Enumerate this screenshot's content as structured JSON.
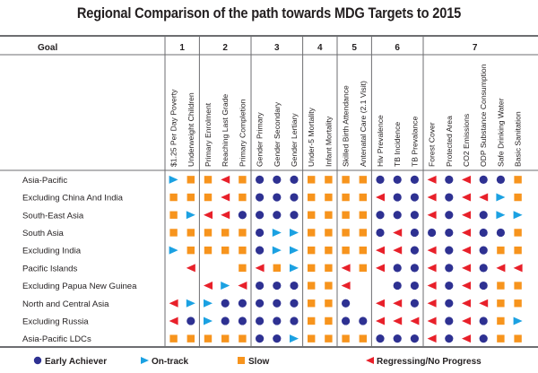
{
  "chart_data": {
    "type": "table",
    "title": "Regional Comparison of the path towards MDG Targets to 2015",
    "goal_header_label": "Goal",
    "colors": {
      "early": "#2e3192",
      "ontrack": "#1ba1e2",
      "slow": "#f7941d",
      "regressing": "#e8202a",
      "grid": "#6d6e71"
    },
    "goals": [
      {
        "label": "1",
        "indicators": [
          "$1.25 Per Day Poverty",
          "Underweight Children"
        ]
      },
      {
        "label": "2",
        "indicators": [
          "Primary Enrolment",
          "Reaching Last Grade",
          "Primary Completion"
        ]
      },
      {
        "label": "3",
        "indicators": [
          "Gender Primary",
          "Gender Secondary",
          "Gender Lertiary"
        ]
      },
      {
        "label": "4",
        "indicators": [
          "Under-5 Mortality",
          "Infant Mortality"
        ]
      },
      {
        "label": "5",
        "indicators": [
          "Skilled Birth Attendance",
          "Antenatal Care (2.1 Visit)"
        ]
      },
      {
        "label": "6",
        "indicators": [
          "Hiv Prevalence",
          "TB Incidence",
          "TB Prevalance"
        ]
      },
      {
        "label": "7",
        "indicators": [
          "Forest Cover",
          "Protected Area",
          "CO2 Emissions",
          "ODP Substance Consumption",
          "Safe Drinking Water",
          "Basic Sanitation"
        ]
      }
    ],
    "legend": [
      {
        "key": "E",
        "shape": "circle",
        "label": "Early Achiever",
        "color_key": "early"
      },
      {
        "key": "O",
        "shape": "triangle-right",
        "label": "On-track",
        "color_key": "ontrack"
      },
      {
        "key": "S",
        "shape": "square",
        "label": "Slow",
        "color_key": "slow"
      },
      {
        "key": "R",
        "shape": "triangle-left",
        "label": "Regressing/No Progress",
        "color_key": "regressing"
      }
    ],
    "rows": [
      {
        "region": "Asia-Pacific",
        "status": [
          "O",
          "S",
          "S",
          "R",
          "S",
          "E",
          "E",
          "E",
          "S",
          "S",
          "S",
          "S",
          "E",
          "E",
          "E",
          "R",
          "E",
          "R",
          "E",
          "E",
          "S"
        ]
      },
      {
        "region": "Excluding China And India",
        "status": [
          "S",
          "S",
          "S",
          "R",
          "S",
          "E",
          "E",
          "E",
          "S",
          "S",
          "S",
          "S",
          "R",
          "E",
          "E",
          "R",
          "E",
          "R",
          "R",
          "O",
          "S"
        ]
      },
      {
        "region": "South-East Asia",
        "status": [
          "S",
          "O",
          "R",
          "R",
          "E",
          "E",
          "E",
          "E",
          "S",
          "S",
          "S",
          "S",
          "E",
          "E",
          "E",
          "R",
          "E",
          "R",
          "E",
          "O",
          "O"
        ]
      },
      {
        "region": "South Asia",
        "status": [
          "S",
          "S",
          "S",
          "S",
          "S",
          "E",
          "O",
          "O",
          "S",
          "S",
          "S",
          "S",
          "E",
          "R",
          "E",
          "E",
          "E",
          "R",
          "E",
          "E",
          "S"
        ]
      },
      {
        "region": "Excluding India",
        "status": [
          "O",
          "S",
          "S",
          "S",
          "S",
          "E",
          "O",
          "O",
          "S",
          "S",
          "S",
          "S",
          "R",
          "R",
          "E",
          "R",
          "E",
          "R",
          "E",
          "S",
          "S"
        ]
      },
      {
        "region": "Pacific Islands",
        "status": [
          "",
          "R",
          "",
          "",
          "S",
          "R",
          "S",
          "O",
          "S",
          "S",
          "R",
          "S",
          "R",
          "E",
          "E",
          "R",
          "E",
          "R",
          "E",
          "R",
          "R"
        ]
      },
      {
        "region": "Excluding Papua New Guinea",
        "status": [
          "",
          "",
          "R",
          "O",
          "R",
          "E",
          "E",
          "E",
          "S",
          "S",
          "R",
          "",
          "",
          "E",
          "E",
          "R",
          "E",
          "R",
          "E",
          "S",
          "S"
        ]
      },
      {
        "region": "North and Central Asia",
        "status": [
          "R",
          "O",
          "O",
          "E",
          "E",
          "E",
          "E",
          "E",
          "S",
          "S",
          "E",
          "",
          "R",
          "R",
          "E",
          "R",
          "E",
          "R",
          "R",
          "S",
          "S"
        ]
      },
      {
        "region": "Excluding Russia",
        "status": [
          "R",
          "E",
          "O",
          "E",
          "E",
          "E",
          "E",
          "E",
          "S",
          "S",
          "E",
          "E",
          "R",
          "R",
          "R",
          "R",
          "E",
          "R",
          "E",
          "S",
          "O"
        ]
      },
      {
        "region": "Asia-Pacific LDCs",
        "status": [
          "S",
          "S",
          "S",
          "S",
          "S",
          "E",
          "E",
          "O",
          "S",
          "S",
          "S",
          "S",
          "E",
          "E",
          "E",
          "R",
          "E",
          "R",
          "E",
          "S",
          "S"
        ]
      }
    ]
  }
}
